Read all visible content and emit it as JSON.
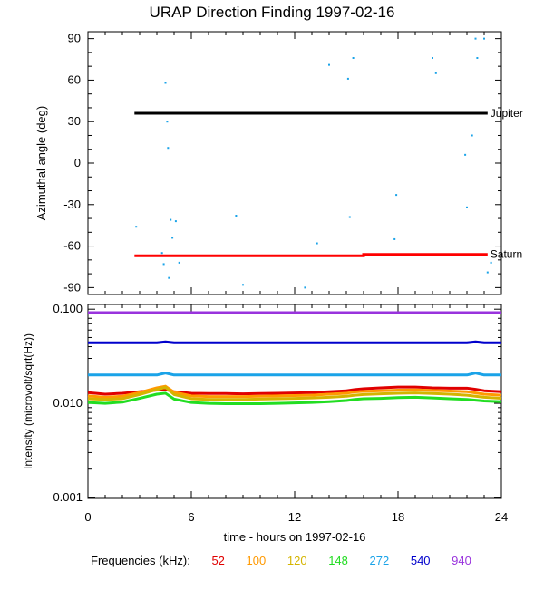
{
  "title": "URAP Direction Finding  1997-02-16",
  "legend": {
    "label": "Frequencies (kHz):",
    "items": [
      {
        "label": "52",
        "color": "#e00000"
      },
      {
        "label": "100",
        "color": "#ff9900"
      },
      {
        "label": "120",
        "color": "#d4b400"
      },
      {
        "label": "148",
        "color": "#22dd22"
      },
      {
        "label": "272",
        "color": "#1aa3e8"
      },
      {
        "label": "540",
        "color": "#0000cc"
      },
      {
        "label": "940",
        "color": "#9933dd"
      }
    ]
  },
  "chart_data": [
    {
      "type": "scatter",
      "title": "URAP Direction Finding  1997-02-16",
      "ylabel": "Azimuthal angle (deg)",
      "xlim": [
        0,
        24
      ],
      "ylim": [
        -95,
        95
      ],
      "yticks": [
        90,
        60,
        30,
        0,
        -30,
        -60,
        -90
      ],
      "ytick_labels": [
        "90",
        "60",
        "30",
        "0",
        "-30",
        "-60",
        "-90"
      ],
      "reference_lines": [
        {
          "name": "Jupiter",
          "color": "#000000",
          "x": [
            2.7,
            23.2
          ],
          "y": [
            36,
            36
          ]
        },
        {
          "name": "Saturn",
          "color": "#ff0000",
          "x": [
            2.7,
            16.0,
            16.0,
            23.2
          ],
          "y": [
            -67,
            -67,
            -66,
            -66
          ]
        }
      ],
      "points": {
        "color": "#1aa3e8",
        "x": [
          2.8,
          4.5,
          4.6,
          4.65,
          4.8,
          4.9,
          5.1,
          5.3,
          4.3,
          4.4,
          8.6,
          9.0,
          12.6,
          13.3,
          14.0,
          15.1,
          15.4,
          15.2,
          17.8,
          17.9,
          20.0,
          20.2,
          21.9,
          22.0,
          22.3,
          22.5,
          22.6,
          23.0,
          23.2,
          23.4,
          4.7
        ],
        "y": [
          -46,
          58,
          30,
          11,
          -41,
          -54,
          -42,
          -72,
          -65,
          -73,
          -38,
          -88,
          -90,
          -58,
          71,
          61,
          76,
          -39,
          -55,
          -23,
          76,
          65,
          6,
          -32,
          20,
          90,
          76,
          90,
          -79,
          -72,
          -83
        ]
      }
    },
    {
      "type": "line",
      "ylabel": "Intensity (microvolt/sqrt(Hz))",
      "xlabel": "time - hours on 1997-02-16",
      "xlim": [
        0,
        24
      ],
      "xticks": [
        0,
        6,
        12,
        18,
        24
      ],
      "xtick_labels": [
        "0",
        "6",
        "12",
        "18",
        "24"
      ],
      "yscale": "log",
      "ylim": [
        0.001,
        0.1
      ],
      "yticks": [
        0.1,
        0.01,
        0.001
      ],
      "ytick_labels": [
        "0.100",
        "0.010",
        "0.001"
      ],
      "x": [
        0,
        1,
        2,
        3,
        4,
        4.5,
        5,
        6,
        7,
        8,
        9,
        10,
        11,
        12,
        13,
        14,
        15,
        15.5,
        16,
        17,
        18,
        19,
        20,
        21,
        22,
        22.5,
        23,
        24
      ],
      "series": [
        {
          "name": "940",
          "color": "#9933dd",
          "values": [
            0.092,
            0.092,
            0.092,
            0.092,
            0.092,
            0.092,
            0.092,
            0.092,
            0.092,
            0.092,
            0.092,
            0.092,
            0.092,
            0.092,
            0.092,
            0.092,
            0.092,
            0.092,
            0.092,
            0.092,
            0.092,
            0.092,
            0.092,
            0.092,
            0.092,
            0.092,
            0.092,
            0.092
          ]
        },
        {
          "name": "540",
          "color": "#0000cc",
          "values": [
            0.044,
            0.044,
            0.044,
            0.044,
            0.044,
            0.045,
            0.044,
            0.044,
            0.044,
            0.044,
            0.044,
            0.044,
            0.044,
            0.044,
            0.044,
            0.044,
            0.044,
            0.044,
            0.044,
            0.044,
            0.044,
            0.044,
            0.044,
            0.044,
            0.044,
            0.045,
            0.044,
            0.044
          ]
        },
        {
          "name": "272",
          "color": "#1aa3e8",
          "values": [
            0.02,
            0.02,
            0.02,
            0.02,
            0.02,
            0.021,
            0.02,
            0.02,
            0.02,
            0.02,
            0.02,
            0.02,
            0.02,
            0.02,
            0.02,
            0.02,
            0.02,
            0.02,
            0.02,
            0.02,
            0.02,
            0.02,
            0.02,
            0.02,
            0.02,
            0.021,
            0.02,
            0.02
          ]
        },
        {
          "name": "52",
          "color": "#e00000",
          "values": [
            0.013,
            0.0125,
            0.0128,
            0.0133,
            0.0138,
            0.014,
            0.0133,
            0.0128,
            0.0127,
            0.0127,
            0.0126,
            0.0127,
            0.0128,
            0.0129,
            0.013,
            0.0133,
            0.0136,
            0.014,
            0.0143,
            0.0146,
            0.0149,
            0.0149,
            0.0146,
            0.0145,
            0.0145,
            0.0141,
            0.0136,
            0.0133
          ]
        },
        {
          "name": "100",
          "color": "#ff9900",
          "values": [
            0.012,
            0.0116,
            0.0119,
            0.013,
            0.0146,
            0.0152,
            0.0131,
            0.012,
            0.0118,
            0.0118,
            0.0118,
            0.0119,
            0.012,
            0.0121,
            0.0122,
            0.0125,
            0.0128,
            0.0132,
            0.0134,
            0.0136,
            0.0138,
            0.0139,
            0.0137,
            0.0135,
            0.0133,
            0.0129,
            0.0125,
            0.0122
          ]
        },
        {
          "name": "120",
          "color": "#d4b400",
          "values": [
            0.0112,
            0.011,
            0.0112,
            0.0124,
            0.014,
            0.0148,
            0.0124,
            0.0112,
            0.011,
            0.011,
            0.011,
            0.0111,
            0.0112,
            0.0113,
            0.0114,
            0.0116,
            0.0119,
            0.0122,
            0.0124,
            0.0126,
            0.0128,
            0.0129,
            0.0127,
            0.0125,
            0.0122,
            0.0119,
            0.0116,
            0.0113
          ]
        },
        {
          "name": "148",
          "color": "#22dd22",
          "values": [
            0.0102,
            0.01,
            0.0103,
            0.0113,
            0.0125,
            0.0128,
            0.0111,
            0.0102,
            0.01,
            0.0099,
            0.0099,
            0.0099,
            0.01,
            0.0101,
            0.0102,
            0.0104,
            0.0107,
            0.011,
            0.0112,
            0.0113,
            0.0115,
            0.0116,
            0.0114,
            0.0112,
            0.011,
            0.0108,
            0.0106,
            0.0104
          ]
        }
      ]
    }
  ]
}
